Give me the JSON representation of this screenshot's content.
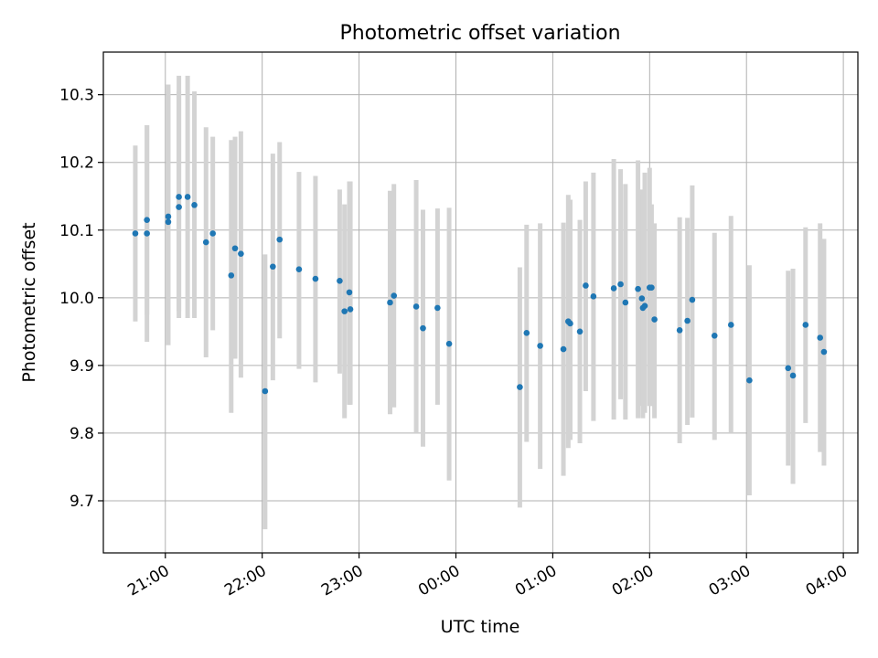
{
  "chart_data": {
    "type": "scatter",
    "title": "Photometric offset variation",
    "xlabel": "UTC time",
    "ylabel": "Photometric offset",
    "xticks": [
      "21:00",
      "22:00",
      "23:00",
      "00:00",
      "01:00",
      "02:00",
      "03:00",
      "04:00"
    ],
    "x_tick_hours": [
      21,
      22,
      23,
      24,
      25,
      26,
      27,
      28
    ],
    "xlim_hours": [
      20.36,
      28.15
    ],
    "yticks": [
      "9.7",
      "9.8",
      "9.9",
      "10.0",
      "10.1",
      "10.2",
      "10.3"
    ],
    "ytick_values": [
      9.7,
      9.8,
      9.9,
      10.0,
      10.1,
      10.2,
      10.3
    ],
    "ylim": [
      9.623,
      10.363
    ],
    "grid": true,
    "point_color": "#1f77b4",
    "errorbar_color": "#d3d3d3",
    "series": [
      {
        "x_hours": [
          20.69,
          20.81,
          20.81,
          21.03,
          21.03,
          21.14,
          21.14,
          21.23,
          21.3,
          21.42,
          21.49,
          21.68,
          21.72,
          21.78,
          22.03,
          22.11,
          22.18,
          22.38,
          22.55,
          22.8,
          22.85,
          22.9,
          22.91,
          23.32,
          23.36,
          23.59,
          23.66,
          23.81,
          23.93,
          24.66,
          24.73,
          24.87,
          25.11,
          25.16,
          25.18,
          25.28,
          25.34,
          25.42,
          25.63,
          25.7,
          25.75,
          25.88,
          25.92,
          25.93,
          25.95,
          26.0,
          26.02,
          26.05,
          26.31,
          26.39,
          26.44,
          26.67,
          26.84,
          27.03,
          27.43,
          27.48,
          27.61,
          27.76,
          27.8
        ],
        "y": [
          10.095,
          10.095,
          10.115,
          10.12,
          10.112,
          10.134,
          10.149,
          10.149,
          10.137,
          10.082,
          10.095,
          10.033,
          10.073,
          10.065,
          9.862,
          10.046,
          10.086,
          10.042,
          10.028,
          10.025,
          9.98,
          10.008,
          9.983,
          9.993,
          10.003,
          9.987,
          9.955,
          9.985,
          9.932,
          9.868,
          9.948,
          9.929,
          9.924,
          9.965,
          9.962,
          9.95,
          10.018,
          10.002,
          10.014,
          10.02,
          9.993,
          10.013,
          9.999,
          9.985,
          9.988,
          10.015,
          10.015,
          9.968,
          9.952,
          9.966,
          9.997,
          9.944,
          9.96,
          9.878,
          9.896,
          9.885,
          9.96,
          9.941,
          9.92
        ],
        "y_low": [
          9.965,
          9.935,
          9.975,
          9.93,
          9.93,
          9.98,
          9.97,
          9.97,
          9.97,
          9.912,
          9.952,
          9.83,
          9.91,
          9.882,
          9.658,
          9.878,
          9.94,
          9.895,
          9.875,
          9.888,
          9.822,
          9.842,
          9.842,
          9.828,
          9.838,
          9.8,
          9.78,
          9.842,
          9.73,
          9.69,
          9.787,
          9.747,
          9.737,
          9.778,
          9.79,
          9.785,
          9.862,
          9.818,
          9.82,
          9.85,
          9.82,
          9.822,
          9.84,
          9.822,
          9.83,
          9.84,
          9.84,
          9.822,
          9.785,
          9.812,
          9.823,
          9.79,
          9.8,
          9.708,
          9.752,
          9.725,
          9.815,
          9.772,
          9.752
        ],
        "y_high": [
          10.225,
          10.255,
          10.255,
          10.315,
          10.305,
          10.305,
          10.328,
          10.328,
          10.305,
          10.252,
          10.238,
          10.233,
          10.238,
          10.246,
          10.064,
          10.213,
          10.23,
          10.186,
          10.18,
          10.16,
          10.138,
          10.172,
          10.172,
          10.158,
          10.168,
          10.174,
          10.13,
          10.132,
          10.133,
          10.045,
          10.108,
          10.11,
          10.111,
          10.152,
          10.145,
          10.115,
          10.172,
          10.185,
          10.205,
          10.19,
          10.168,
          10.203,
          10.16,
          10.152,
          10.185,
          10.192,
          10.138,
          10.11,
          10.119,
          10.118,
          10.166,
          10.096,
          10.121,
          10.048,
          10.04,
          10.043,
          10.104,
          10.11,
          10.087
        ]
      }
    ]
  }
}
